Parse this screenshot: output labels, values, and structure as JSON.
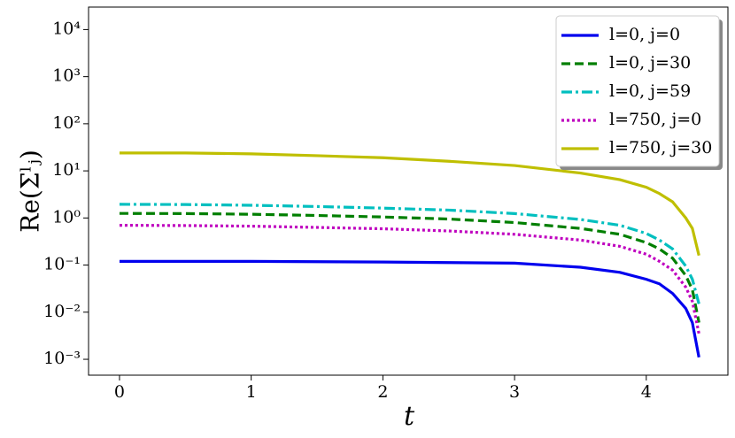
{
  "chart_data": {
    "type": "line",
    "x_label": "t",
    "y_label": "Re(Σˡⱼ)",
    "x": [
      0,
      0.5,
      1,
      1.5,
      2,
      2.5,
      3,
      3.5,
      3.8,
      4,
      4.1,
      4.2,
      4.3,
      4.35,
      4.4
    ],
    "series": [
      {
        "name": "l=0, j=0",
        "color": "#0000ee",
        "linestyle": "solid",
        "values": [
          0.12,
          0.12,
          0.12,
          0.118,
          0.116,
          0.113,
          0.11,
          0.09,
          0.07,
          0.05,
          0.04,
          0.025,
          0.012,
          0.006,
          0.0011
        ]
      },
      {
        "name": "l=0, j=30",
        "color": "#007f00",
        "linestyle": "dashed",
        "values": [
          1.25,
          1.24,
          1.2,
          1.13,
          1.05,
          0.95,
          0.8,
          0.6,
          0.45,
          0.3,
          0.22,
          0.14,
          0.06,
          0.03,
          0.006
        ]
      },
      {
        "name": "l=0, j=59",
        "color": "#00bfbf",
        "linestyle": "dashdot",
        "values": [
          1.95,
          1.93,
          1.86,
          1.75,
          1.62,
          1.47,
          1.24,
          0.93,
          0.7,
          0.47,
          0.34,
          0.22,
          0.095,
          0.05,
          0.015
        ]
      },
      {
        "name": "l=750, j=0",
        "color": "#bf00bf",
        "linestyle": "dotted",
        "values": [
          0.7,
          0.69,
          0.67,
          0.63,
          0.59,
          0.53,
          0.45,
          0.34,
          0.25,
          0.17,
          0.12,
          0.078,
          0.034,
          0.017,
          0.0035
        ]
      },
      {
        "name": "l=750, j=30",
        "color": "#bfbf00",
        "linestyle": "solid",
        "values": [
          24,
          24,
          23,
          21,
          19,
          16,
          13,
          9,
          6.5,
          4.5,
          3.3,
          2.2,
          1.0,
          0.6,
          0.16
        ]
      }
    ],
    "xlim": [
      -0.235,
      4.62
    ],
    "xticks": [
      0,
      1,
      2,
      3,
      4
    ],
    "ylim": [
      0.00046,
      30000
    ],
    "y_log": true,
    "yticks": [
      {
        "value": 0.001,
        "label": "10⁻³"
      },
      {
        "value": 0.01,
        "label": "10⁻²"
      },
      {
        "value": 0.1,
        "label": "10⁻¹"
      },
      {
        "value": 1,
        "label": "10⁰"
      },
      {
        "value": 10,
        "label": "10¹"
      },
      {
        "value": 100,
        "label": "10²"
      },
      {
        "value": 1000,
        "label": "10³"
      },
      {
        "value": 10000,
        "label": "10⁴"
      }
    ],
    "legend": "upper right",
    "grid": false
  }
}
